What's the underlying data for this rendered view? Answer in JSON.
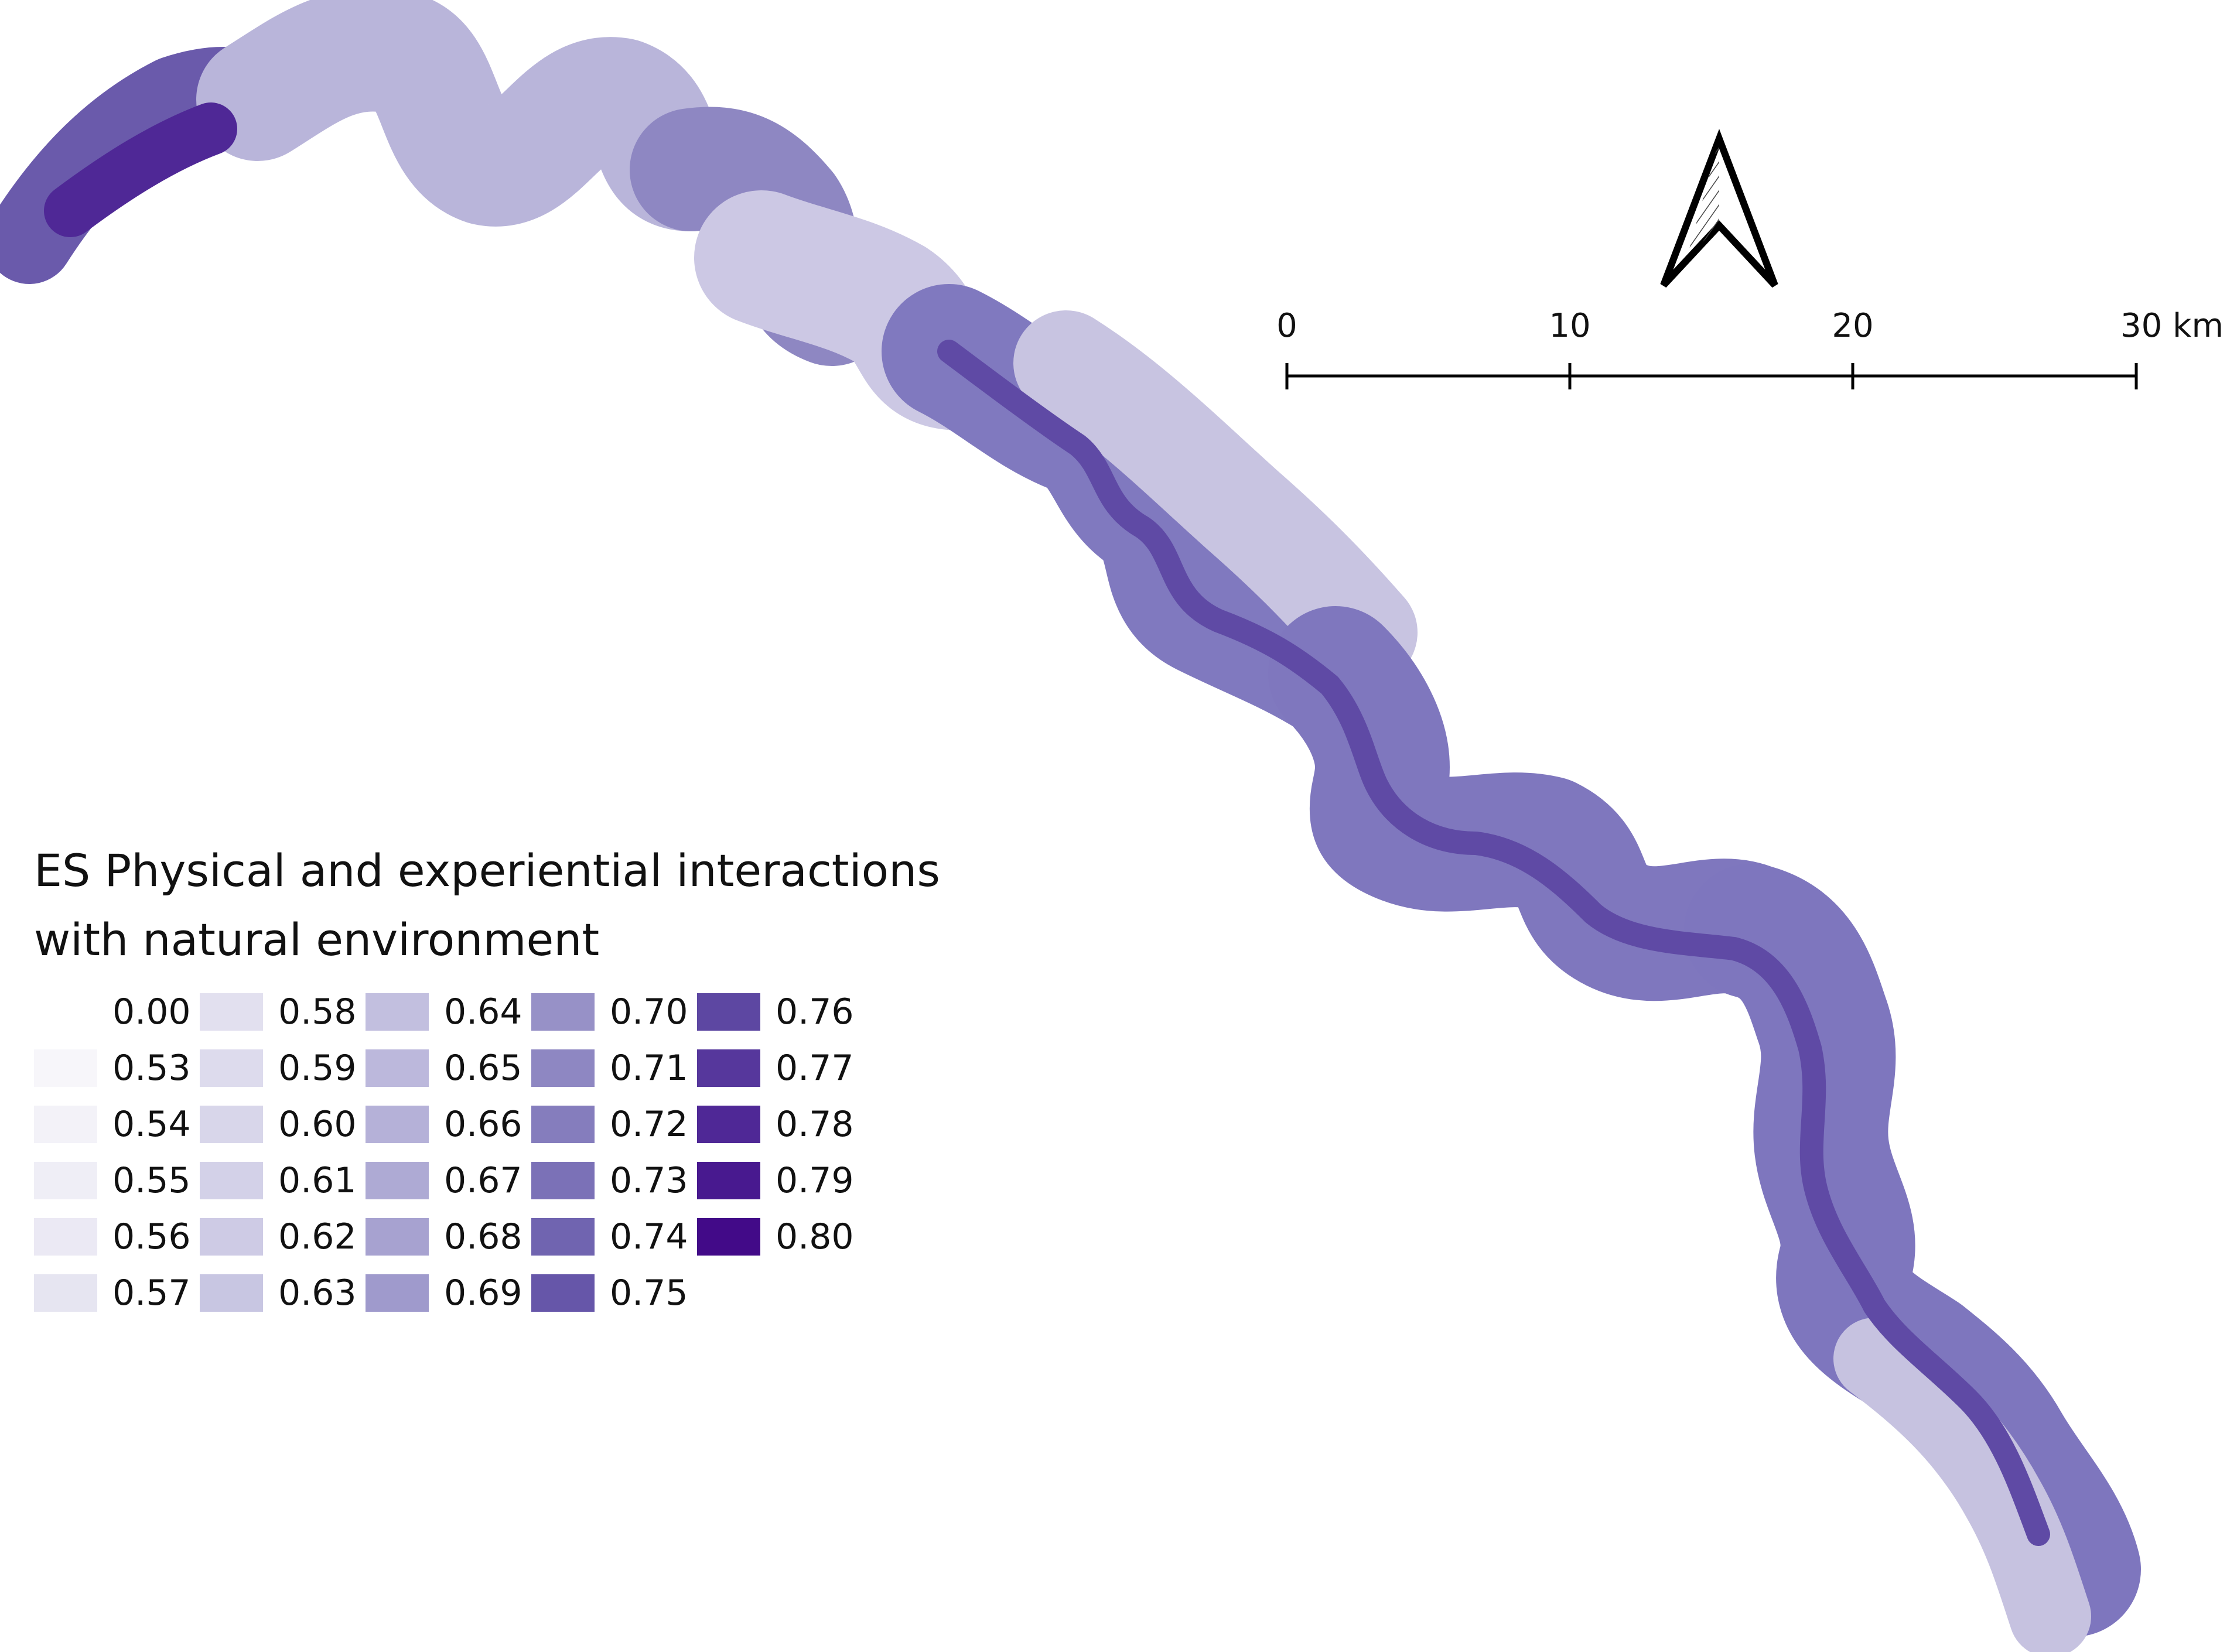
{
  "legend": {
    "title_line1": "ES Physical and experiential interactions",
    "title_line2": "with natural environment",
    "classes": [
      {
        "label": "0.00",
        "color": "#ffffff"
      },
      {
        "label": "0.53",
        "color": "#f7f6fa"
      },
      {
        "label": "0.54",
        "color": "#f3f2f8"
      },
      {
        "label": "0.55",
        "color": "#efeef6"
      },
      {
        "label": "0.56",
        "color": "#ebe9f4"
      },
      {
        "label": "0.57",
        "color": "#e6e5f1"
      },
      {
        "label": "0.58",
        "color": "#e2e0ef"
      },
      {
        "label": "0.59",
        "color": "#dddbed"
      },
      {
        "label": "0.60",
        "color": "#d8d6ea"
      },
      {
        "label": "0.61",
        "color": "#d3d1e8"
      },
      {
        "label": "0.62",
        "color": "#cecbe5"
      },
      {
        "label": "0.63",
        "color": "#c8c6e2"
      },
      {
        "label": "0.64",
        "color": "#c2bfdf"
      },
      {
        "label": "0.65",
        "color": "#bcb8dc"
      },
      {
        "label": "0.66",
        "color": "#b5b1d8"
      },
      {
        "label": "0.67",
        "color": "#aeaad4"
      },
      {
        "label": "0.68",
        "color": "#a7a2d0"
      },
      {
        "label": "0.69",
        "color": "#9f9acc"
      },
      {
        "label": "0.70",
        "color": "#9791c7"
      },
      {
        "label": "0.71",
        "color": "#8e87c2"
      },
      {
        "label": "0.72",
        "color": "#857dbd"
      },
      {
        "label": "0.73",
        "color": "#7b71b7"
      },
      {
        "label": "0.74",
        "color": "#7064b0"
      },
      {
        "label": "0.75",
        "color": "#6656a9"
      },
      {
        "label": "0.76",
        "color": "#5d47a2"
      },
      {
        "label": "0.77",
        "color": "#56379c"
      },
      {
        "label": "0.78",
        "color": "#4f2896"
      },
      {
        "label": "0.79",
        "color": "#48198f"
      },
      {
        "label": "0.80",
        "color": "#420a88"
      }
    ]
  },
  "scale_bar": {
    "labels": [
      "0",
      "10",
      "20",
      "30 km"
    ]
  },
  "north_arrow": {
    "icon": "north-arrow-icon"
  }
}
